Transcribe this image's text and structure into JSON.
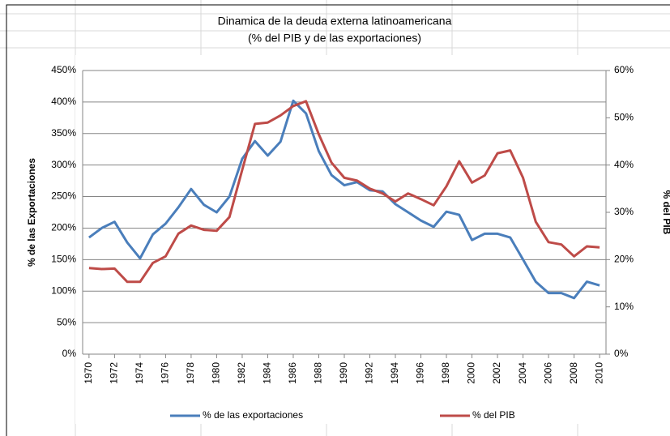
{
  "chart_data": {
    "type": "line",
    "title": "Dinamica de la deuda externa latinoamericana",
    "subtitle": "(% del PIB y de las exportaciones)",
    "y_label": "% de las Exportaciones",
    "y2_label": "% del PIB",
    "x": [
      1970,
      1971,
      1972,
      1973,
      1974,
      1975,
      1976,
      1977,
      1978,
      1979,
      1980,
      1981,
      1982,
      1983,
      1984,
      1985,
      1986,
      1987,
      1988,
      1989,
      1990,
      1991,
      1992,
      1993,
      1994,
      1995,
      1996,
      1997,
      1998,
      1999,
      2000,
      2001,
      2002,
      2003,
      2004,
      2005,
      2006,
      2007,
      2008,
      2009,
      2010
    ],
    "xlim": [
      1969.5,
      2010.5
    ],
    "xticks": [
      1970,
      1972,
      1974,
      1976,
      1978,
      1980,
      1982,
      1984,
      1986,
      1988,
      1990,
      1992,
      1994,
      1996,
      1998,
      2000,
      2002,
      2004,
      2006,
      2008,
      2010
    ],
    "ylim": [
      0,
      450
    ],
    "yticks": [
      {
        "value": 0,
        "label": "0%"
      },
      {
        "value": 50,
        "label": "50%"
      },
      {
        "value": 100,
        "label": "100%"
      },
      {
        "value": 150,
        "label": "150%"
      },
      {
        "value": 200,
        "label": "200%"
      },
      {
        "value": 250,
        "label": "250%"
      },
      {
        "value": 300,
        "label": "300%"
      },
      {
        "value": 350,
        "label": "350%"
      },
      {
        "value": 400,
        "label": "400%"
      },
      {
        "value": 450,
        "label": "450%"
      }
    ],
    "y2lim": [
      0,
      60
    ],
    "y2ticks": [
      {
        "value": 0,
        "label": "0%"
      },
      {
        "value": 10,
        "label": "10%"
      },
      {
        "value": 20,
        "label": "20%"
      },
      {
        "value": 30,
        "label": "30%"
      },
      {
        "value": 40,
        "label": "40%"
      },
      {
        "value": 50,
        "label": "50%"
      },
      {
        "value": 60,
        "label": "60%"
      }
    ],
    "grid": true,
    "legend": "bottom",
    "series": [
      {
        "name": "% de las exportaciones",
        "color": "#4a7ebb",
        "values": [
          185,
          200,
          210,
          177,
          152,
          190,
          207,
          233,
          262,
          237,
          225,
          250,
          310,
          338,
          315,
          337,
          402,
          382,
          322,
          284,
          268,
          273,
          260,
          258,
          238,
          225,
          212,
          202,
          226,
          221,
          181,
          191,
          191,
          185,
          150,
          115,
          97,
          97,
          89,
          115,
          109
        ]
      },
      {
        "name": "% del PIB",
        "color": "#be4b48",
        "axis": "y2",
        "values": [
          18.2,
          18,
          18.1,
          15.3,
          15.3,
          19.3,
          20.7,
          25.5,
          27.2,
          26.3,
          26.1,
          29,
          39,
          48.7,
          49,
          50.5,
          52.5,
          53.5,
          46.5,
          40.5,
          37.3,
          36.7,
          35,
          34,
          32.3,
          34,
          32.8,
          31.5,
          35.5,
          40.8,
          36.3,
          37.8,
          42.5,
          43.1,
          37.3,
          28,
          23.7,
          23.2,
          20.7,
          22.8,
          22.6
        ]
      }
    ]
  }
}
